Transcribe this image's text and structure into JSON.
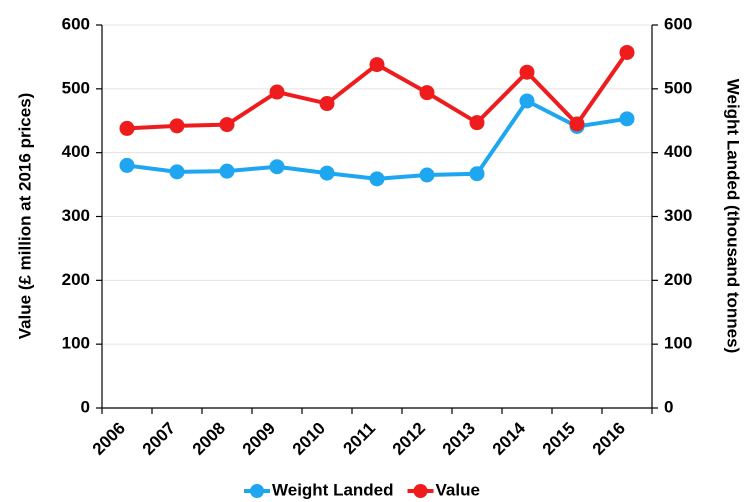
{
  "chart_data": {
    "type": "line",
    "categories": [
      "2006",
      "2007",
      "2008",
      "2009",
      "2010",
      "2011",
      "2012",
      "2013",
      "2014",
      "2015",
      "2016"
    ],
    "y_label": "Value (£ million at 2016 prices)",
    "y2_label": "Weight Landed (thousand tonnes)",
    "ylim": [
      0,
      600
    ],
    "yticks": [
      0,
      100,
      200,
      300,
      400,
      500,
      600
    ],
    "y2lim": [
      0,
      600
    ],
    "y2ticks": [
      0,
      100,
      200,
      300,
      400,
      500,
      600
    ],
    "grid": true,
    "legend": "bottom",
    "series": [
      {
        "name": "Weight Landed",
        "color": "#1ea7f0",
        "axis": "y2",
        "values": [
          380,
          370,
          371,
          378,
          368,
          359,
          365,
          367,
          481,
          441,
          453
        ]
      },
      {
        "name": "Value",
        "color": "#ee1c1c",
        "values": [
          438,
          442,
          444,
          495,
          477,
          538,
          494,
          447,
          526,
          445,
          557
        ]
      }
    ]
  }
}
